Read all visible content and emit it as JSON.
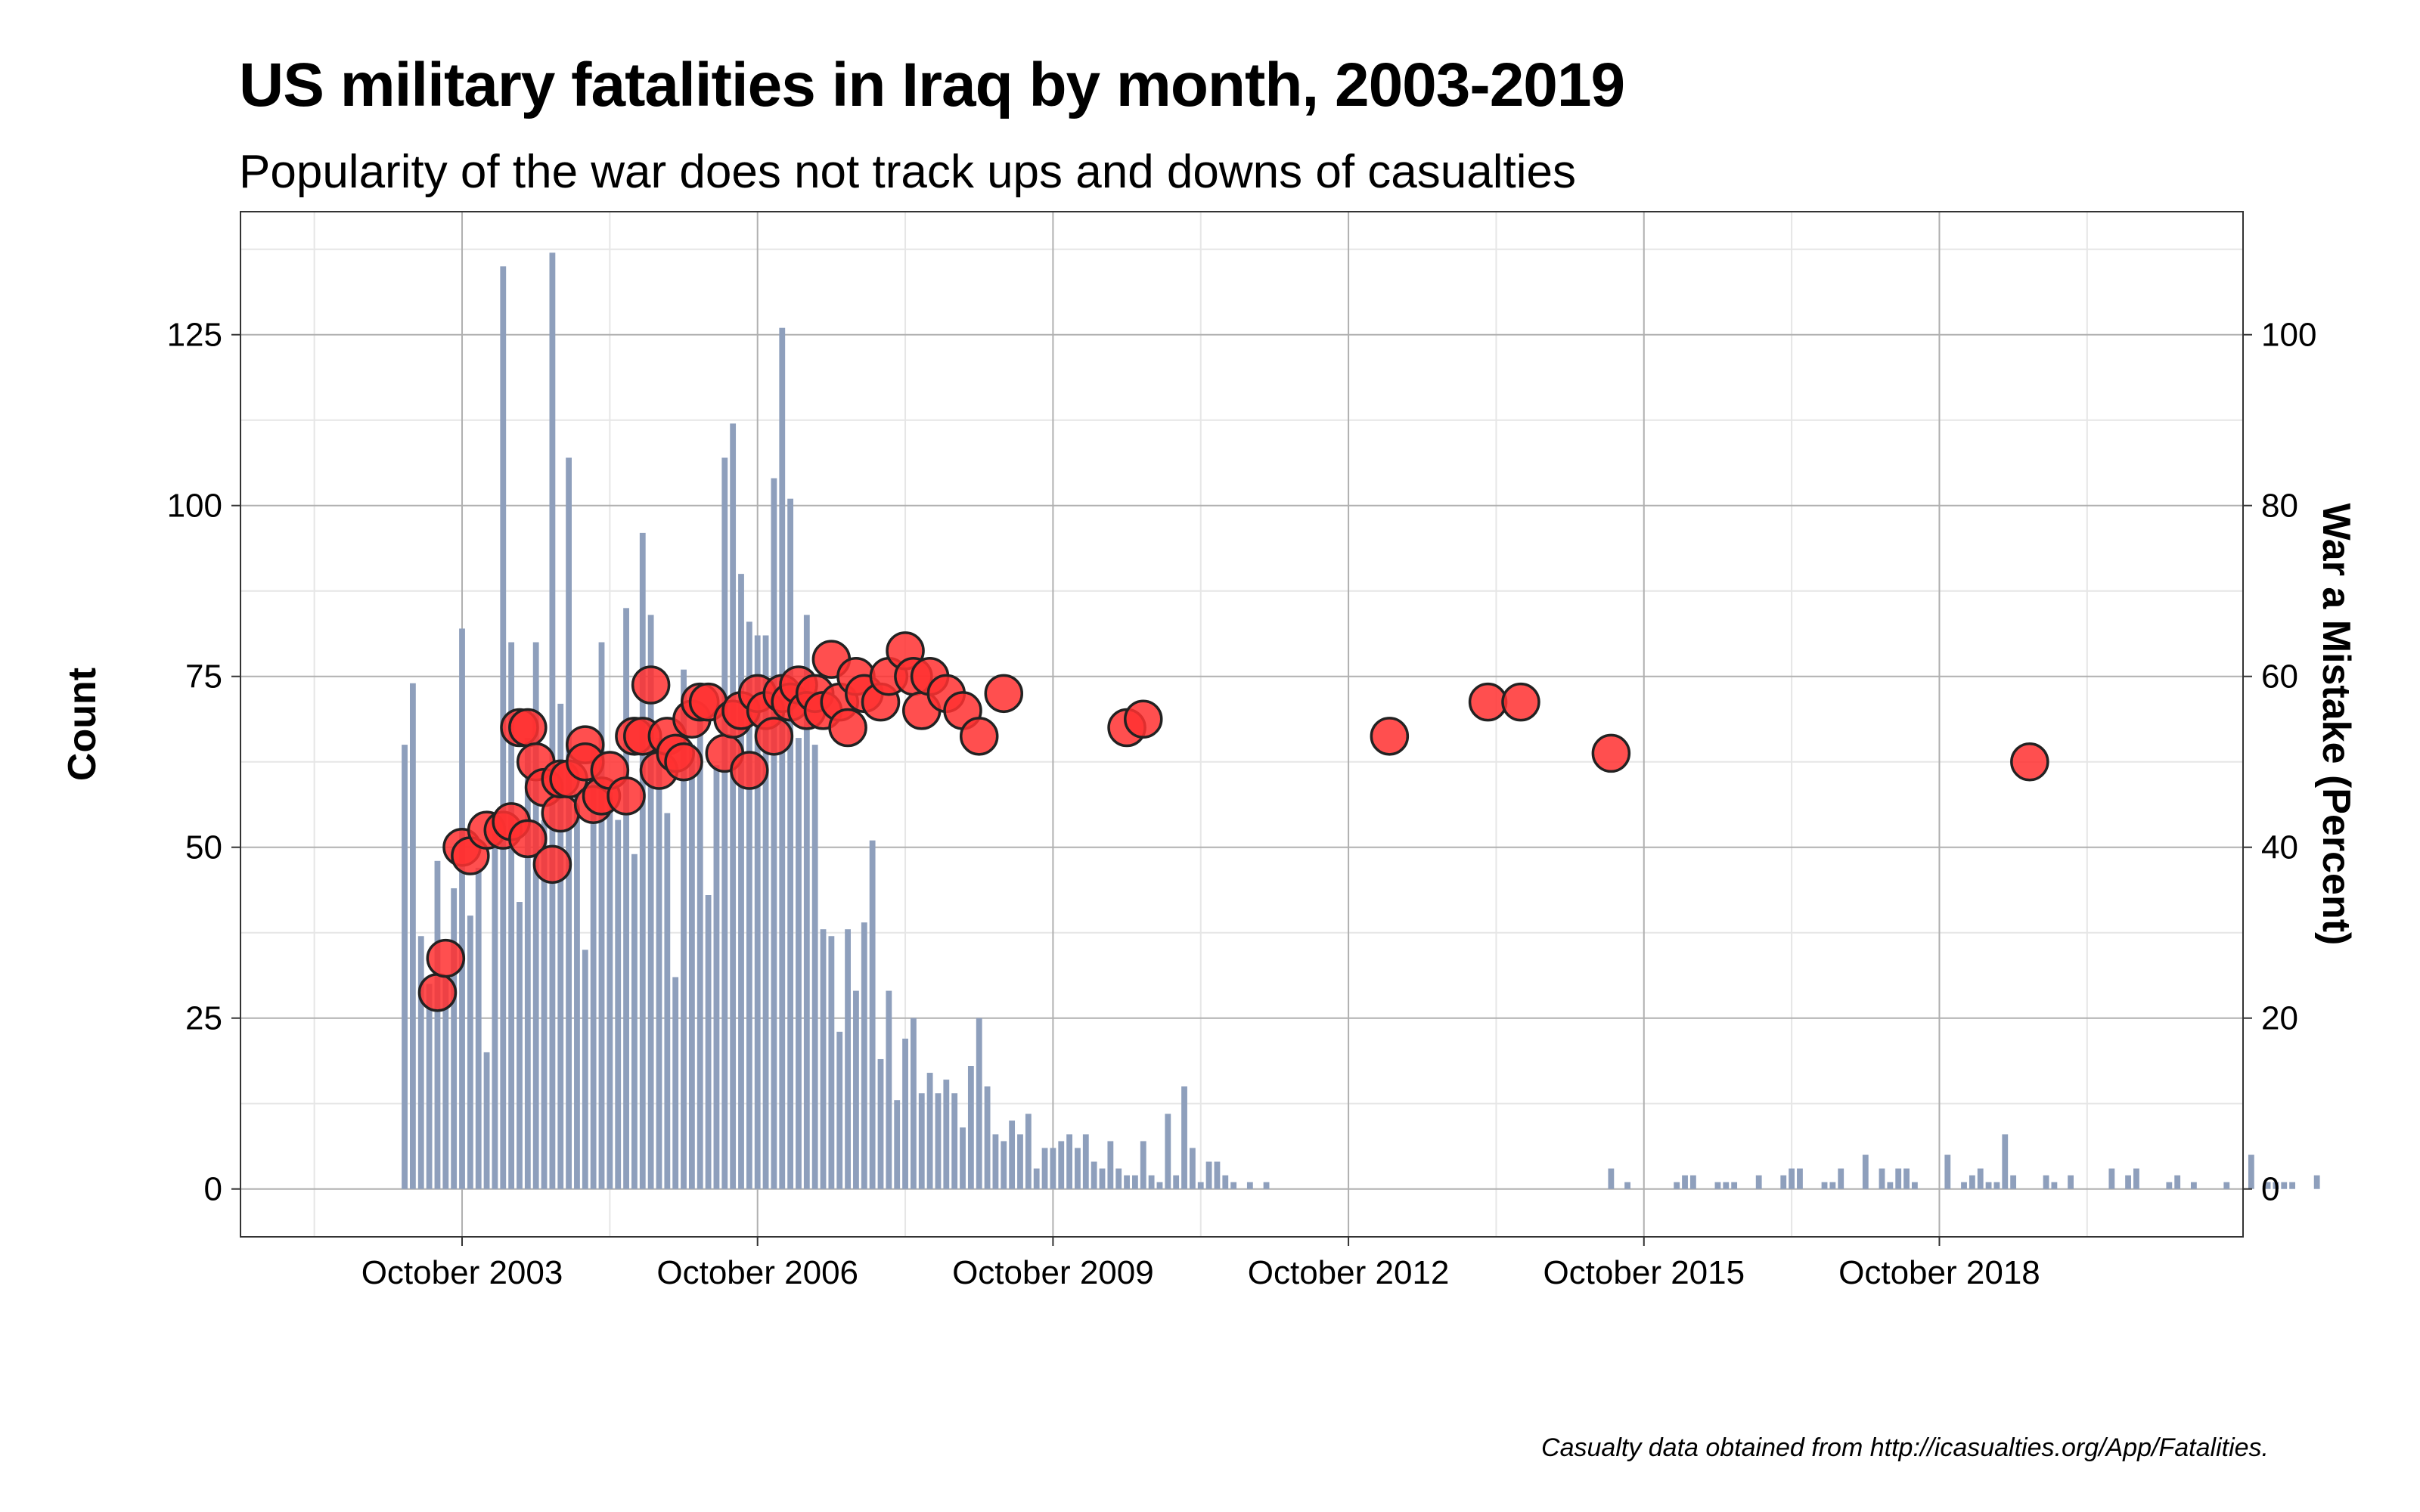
{
  "colors": {
    "bar": "#8e9fbc",
    "point": "#ff3030",
    "point_stroke": "#222222",
    "grid_major": "#b0b0b0",
    "grid_minor": "#e6e6e6"
  },
  "chart_data": {
    "type": "bar",
    "title": "US military fatalities in Iraq by month, 2003-2019",
    "subtitle": "Popularity of the war does not track ups and downs of casualties",
    "caption": "Casualty data obtained from http://icasualties.org/App/Fatalities.",
    "ylabel": "Count",
    "y2label": "War a Mistake (Percent)",
    "grid": true,
    "xlim": [
      "2001-07-01",
      "2021-11-01"
    ],
    "ylim": [
      -7,
      143
    ],
    "y2lim": [
      -5.6,
      114.4
    ],
    "x_ticks": [
      {
        "date": "2003-10-01",
        "label": "October 2003"
      },
      {
        "date": "2006-10-01",
        "label": "October 2006"
      },
      {
        "date": "2009-10-01",
        "label": "October 2009"
      },
      {
        "date": "2012-10-01",
        "label": "October 2012"
      },
      {
        "date": "2015-10-01",
        "label": "October 2015"
      },
      {
        "date": "2018-10-01",
        "label": "October 2018"
      }
    ],
    "y_ticks": [
      0,
      25,
      50,
      75,
      100,
      125
    ],
    "y2_ticks": [
      0,
      20,
      40,
      60,
      80,
      100
    ],
    "series": [
      {
        "name": "Count",
        "type": "bar",
        "start": "2003-03",
        "values": [
          65,
          74,
          37,
          30,
          48,
          31,
          44,
          82,
          40,
          47,
          20,
          52,
          135,
          80,
          42,
          66,
          80,
          54,
          137,
          71,
          107,
          58,
          35,
          65,
          80,
          58,
          54,
          85,
          49,
          96,
          84,
          66,
          55,
          31,
          76,
          65,
          69,
          43,
          62,
          107,
          112,
          90,
          83,
          81,
          81,
          104,
          126,
          101,
          66,
          84,
          65,
          38,
          37,
          23,
          38,
          29,
          39,
          51,
          19,
          29,
          13,
          22,
          25,
          14,
          17,
          14,
          16,
          14,
          9,
          18,
          25,
          15,
          8,
          7,
          10,
          8,
          11,
          3,
          6,
          6,
          7,
          8,
          6,
          8,
          4,
          3,
          7,
          3,
          2,
          2,
          7,
          2,
          1,
          11,
          2,
          15,
          6,
          1,
          4,
          4,
          2,
          1,
          0,
          1,
          0,
          1,
          0,
          0,
          0,
          0,
          0,
          0,
          0,
          0,
          0,
          0,
          0,
          0,
          0,
          0,
          0,
          0,
          0,
          0,
          0,
          0,
          0,
          0,
          0,
          0,
          0,
          0,
          0,
          0,
          0,
          0,
          0,
          0,
          0,
          0,
          0,
          0,
          0,
          0,
          0,
          0,
          0,
          3,
          0,
          1,
          0,
          0,
          0,
          0,
          0,
          1,
          2,
          2,
          0,
          0,
          1,
          1,
          1,
          0,
          0,
          2,
          0,
          0,
          2,
          3,
          3,
          0,
          0,
          1,
          1,
          3,
          0,
          0,
          5,
          0,
          3,
          1,
          3,
          3,
          1,
          0,
          0,
          0,
          5,
          0,
          1,
          2,
          3,
          1,
          1,
          8,
          2,
          0,
          0,
          0,
          2,
          1,
          0,
          2,
          0,
          0,
          0,
          0,
          3,
          0,
          2,
          3,
          0,
          0,
          0,
          1,
          2,
          0,
          1,
          0,
          0,
          0,
          1,
          0,
          0,
          5,
          0,
          1,
          1,
          1,
          1,
          0,
          0,
          2
        ]
      },
      {
        "name": "War a Mistake (Percent)",
        "type": "scatter",
        "points": [
          {
            "x": "2003-07",
            "y": 23
          },
          {
            "x": "2003-08",
            "y": 27
          },
          {
            "x": "2003-10",
            "y": 40
          },
          {
            "x": "2003-11",
            "y": 39
          },
          {
            "x": "2004-01",
            "y": 42
          },
          {
            "x": "2004-03",
            "y": 42
          },
          {
            "x": "2004-04",
            "y": 43
          },
          {
            "x": "2004-05",
            "y": 54
          },
          {
            "x": "2004-06",
            "y": 54
          },
          {
            "x": "2004-06",
            "y": 41
          },
          {
            "x": "2004-07",
            "y": 50
          },
          {
            "x": "2004-08",
            "y": 47
          },
          {
            "x": "2004-09",
            "y": 38
          },
          {
            "x": "2004-10",
            "y": 44
          },
          {
            "x": "2004-10",
            "y": 48
          },
          {
            "x": "2004-11",
            "y": 48
          },
          {
            "x": "2005-01",
            "y": 52
          },
          {
            "x": "2005-01",
            "y": 50
          },
          {
            "x": "2005-02",
            "y": 45
          },
          {
            "x": "2005-03",
            "y": 46
          },
          {
            "x": "2005-04",
            "y": 49
          },
          {
            "x": "2005-06",
            "y": 46
          },
          {
            "x": "2005-07",
            "y": 53
          },
          {
            "x": "2005-08",
            "y": 53
          },
          {
            "x": "2005-09",
            "y": 59
          },
          {
            "x": "2005-10",
            "y": 49
          },
          {
            "x": "2005-11",
            "y": 53
          },
          {
            "x": "2005-12",
            "y": 51
          },
          {
            "x": "2006-01",
            "y": 50
          },
          {
            "x": "2006-02",
            "y": 55
          },
          {
            "x": "2006-03",
            "y": 57
          },
          {
            "x": "2006-04",
            "y": 57
          },
          {
            "x": "2006-06",
            "y": 51
          },
          {
            "x": "2006-07",
            "y": 55
          },
          {
            "x": "2006-08",
            "y": 56
          },
          {
            "x": "2006-09",
            "y": 49
          },
          {
            "x": "2006-10",
            "y": 58
          },
          {
            "x": "2006-11",
            "y": 56
          },
          {
            "x": "2006-12",
            "y": 53
          },
          {
            "x": "2007-01",
            "y": 58
          },
          {
            "x": "2007-02",
            "y": 57
          },
          {
            "x": "2007-03",
            "y": 59
          },
          {
            "x": "2007-04",
            "y": 56
          },
          {
            "x": "2007-05",
            "y": 58
          },
          {
            "x": "2007-06",
            "y": 56
          },
          {
            "x": "2007-07",
            "y": 62
          },
          {
            "x": "2007-08",
            "y": 57
          },
          {
            "x": "2007-09",
            "y": 54
          },
          {
            "x": "2007-10",
            "y": 60
          },
          {
            "x": "2007-11",
            "y": 58
          },
          {
            "x": "2008-01",
            "y": 57
          },
          {
            "x": "2008-02",
            "y": 60
          },
          {
            "x": "2008-04",
            "y": 63
          },
          {
            "x": "2008-05",
            "y": 60
          },
          {
            "x": "2008-06",
            "y": 56
          },
          {
            "x": "2008-07",
            "y": 60
          },
          {
            "x": "2008-09",
            "y": 58
          },
          {
            "x": "2008-11",
            "y": 56
          },
          {
            "x": "2009-01",
            "y": 53
          },
          {
            "x": "2009-04",
            "y": 58
          },
          {
            "x": "2010-07",
            "y": 54
          },
          {
            "x": "2010-09",
            "y": 55
          },
          {
            "x": "2013-03",
            "y": 53
          },
          {
            "x": "2014-03",
            "y": 57
          },
          {
            "x": "2014-07",
            "y": 57
          },
          {
            "x": "2015-06",
            "y": 51
          },
          {
            "x": "2019-09",
            "y": 50
          }
        ]
      }
    ]
  }
}
